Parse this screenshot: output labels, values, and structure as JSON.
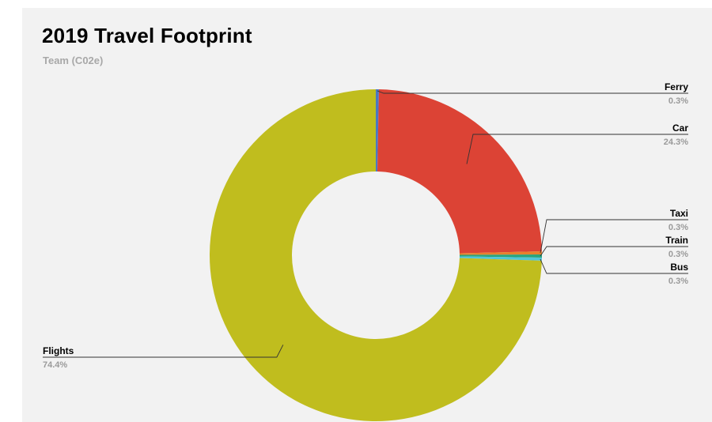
{
  "colors": {
    "background": "#f2f2f2",
    "leader_line": "#333333"
  },
  "chart_data": {
    "type": "pie",
    "donut": true,
    "title": "2019 Travel Footprint",
    "subtitle": "Team (C02e)",
    "slices": [
      {
        "label": "Ferry",
        "value": 0.3,
        "display": "0.3%",
        "color": "#4a78c2"
      },
      {
        "label": "Car",
        "value": 24.3,
        "display": "24.3%",
        "color": "#dc4335"
      },
      {
        "label": "Taxi",
        "value": 0.3,
        "display": "0.3%",
        "color": "#e8802c"
      },
      {
        "label": "Train",
        "value": 0.3,
        "display": "0.3%",
        "color": "#2aa47c"
      },
      {
        "label": "Bus",
        "value": 0.3,
        "display": "0.3%",
        "color": "#52c5d8"
      },
      {
        "label": "Flights",
        "value": 74.4,
        "display": "74.4%",
        "color": "#c0bd1e"
      }
    ]
  }
}
